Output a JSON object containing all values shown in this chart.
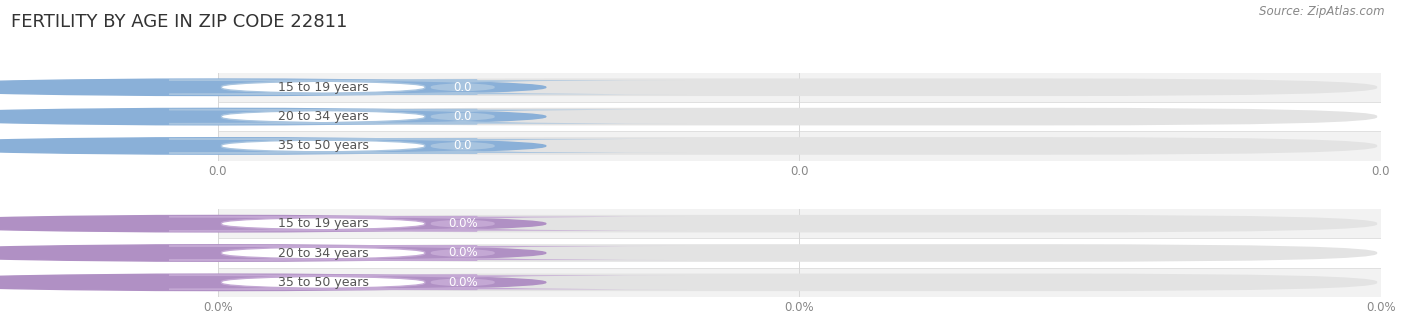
{
  "title": "FERTILITY BY AGE IN ZIP CODE 22811",
  "source": "Source: ZipAtlas.com",
  "sections": [
    {
      "categories": [
        "15 to 19 years",
        "20 to 34 years",
        "35 to 50 years"
      ],
      "values": [
        0.0,
        0.0,
        0.0
      ],
      "bar_color": "#a8c4df",
      "circle_color": "#8ab0d8",
      "label_border_color": "#a8c4df",
      "value_bg_color": "#a8c4df",
      "value_text_color": "#ffffff",
      "label_text_color": "#555555",
      "is_percent": false,
      "x_tick_labels": [
        "0.0",
        "0.0",
        "0.0"
      ]
    },
    {
      "categories": [
        "15 to 19 years",
        "20 to 34 years",
        "35 to 50 years"
      ],
      "values": [
        0.0,
        0.0,
        0.0
      ],
      "bar_color": "#c4a8d4",
      "circle_color": "#b090c4",
      "label_border_color": "#c4a8d4",
      "value_bg_color": "#c4a8d4",
      "value_text_color": "#ffffff",
      "label_text_color": "#555555",
      "is_percent": true,
      "x_tick_labels": [
        "0.0%",
        "0.0%",
        "0.0%"
      ]
    }
  ],
  "x_tick_positions": [
    0.0,
    0.5,
    1.0
  ],
  "bg_color": "#ffffff",
  "row_alt_color": "#f2f2f2",
  "bar_track_color": "#e3e3e3",
  "grid_line_color": "#d8d8d8",
  "sep_line_color": "#e0e0e0",
  "fig_width": 14.06,
  "fig_height": 3.3,
  "title_fontsize": 13,
  "label_fontsize": 9,
  "source_fontsize": 8.5,
  "tick_fontsize": 8.5,
  "tick_color": "#888888"
}
